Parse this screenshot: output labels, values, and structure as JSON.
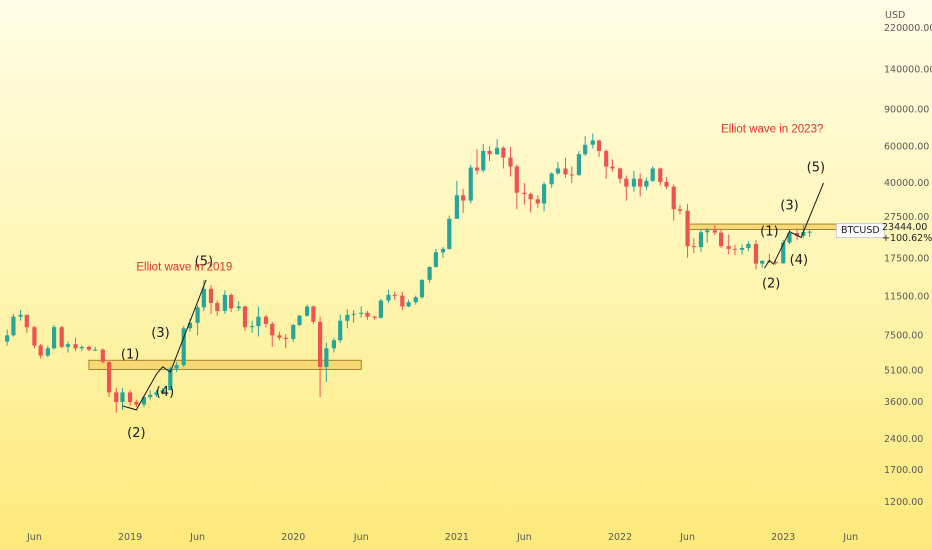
{
  "chart_data": {
    "type": "candlestick",
    "currency_label": "USD",
    "symbol": "BTCUSD",
    "last_price": "23444.00",
    "change_pct": "+100.62%",
    "y_scale": "log",
    "ylim": [
      900,
      300000
    ],
    "y_ticks": [
      "220000.00",
      "140000.00",
      "90000.00",
      "60000.00",
      "40000.00",
      "27500.00",
      "17500.00",
      "11500.00",
      "7500.00",
      "5100.00",
      "3600.00",
      "2400.00",
      "1700.00",
      "1200.00"
    ],
    "x_ticks": [
      "Jun",
      "2019",
      "Jun",
      "2020",
      "Jun",
      "2021",
      "Jun",
      "2022",
      "Jun",
      "2023",
      "Jun"
    ],
    "x_tick_dates": [
      "2018-06-01",
      "2019-01-01",
      "2019-06-01",
      "2020-01-01",
      "2020-06-01",
      "2021-01-01",
      "2021-06-01",
      "2022-01-01",
      "2022-06-01",
      "2023-01-01",
      "2023-06-01"
    ],
    "series": [
      {
        "values": [
          [
            "2018-04-01",
            7000,
            8000,
            6700,
            7500
          ],
          [
            "2018-04-15",
            7500,
            9500,
            7400,
            9200
          ],
          [
            "2018-05-01",
            9200,
            9900,
            8800,
            9400
          ],
          [
            "2018-05-15",
            9400,
            9400,
            7700,
            8200
          ],
          [
            "2018-06-01",
            8200,
            8300,
            6500,
            6700
          ],
          [
            "2018-06-15",
            6700,
            6800,
            5800,
            6000
          ],
          [
            "2018-07-01",
            6000,
            6700,
            5900,
            6500
          ],
          [
            "2018-07-15",
            6500,
            8400,
            6400,
            8200
          ],
          [
            "2018-08-01",
            8200,
            8300,
            6500,
            6600
          ],
          [
            "2018-08-15",
            6600,
            7000,
            6200,
            6800
          ],
          [
            "2018-09-01",
            6800,
            7300,
            6300,
            6500
          ],
          [
            "2018-09-15",
            6500,
            6700,
            6300,
            6600
          ],
          [
            "2018-10-01",
            6600,
            6700,
            6300,
            6400
          ],
          [
            "2018-10-15",
            6400,
            6600,
            6300,
            6400
          ],
          [
            "2018-11-01",
            6400,
            6500,
            5500,
            5600
          ],
          [
            "2018-11-15",
            5600,
            5600,
            3800,
            4000
          ],
          [
            "2018-12-01",
            4000,
            4200,
            3200,
            3600
          ],
          [
            "2018-12-15",
            3600,
            4200,
            3300,
            4000
          ],
          [
            "2019-01-01",
            4000,
            4100,
            3450,
            3600
          ],
          [
            "2019-01-15",
            3600,
            3700,
            3400,
            3500
          ],
          [
            "2019-02-01",
            3500,
            3900,
            3400,
            3800
          ],
          [
            "2019-02-15",
            3800,
            4100,
            3700,
            3900
          ],
          [
            "2019-03-01",
            3900,
            4100,
            3800,
            4000
          ],
          [
            "2019-03-15",
            4000,
            4200,
            3900,
            4100
          ],
          [
            "2019-04-01",
            4100,
            5300,
            4100,
            5200
          ],
          [
            "2019-04-15",
            5200,
            5600,
            5000,
            5400
          ],
          [
            "2019-05-01",
            5400,
            8300,
            5300,
            8100
          ],
          [
            "2019-05-15",
            8100,
            9000,
            7800,
            8600
          ],
          [
            "2019-06-01",
            8600,
            10500,
            7500,
            10200
          ],
          [
            "2019-06-15",
            10200,
            13800,
            9800,
            12500
          ],
          [
            "2019-07-01",
            12500,
            13000,
            9500,
            10700
          ],
          [
            "2019-07-15",
            10700,
            11000,
            9300,
            9800
          ],
          [
            "2019-08-01",
            9800,
            12300,
            9500,
            11700
          ],
          [
            "2019-08-15",
            11700,
            11900,
            9700,
            10100
          ],
          [
            "2019-09-01",
            10100,
            10900,
            9800,
            10300
          ],
          [
            "2019-09-15",
            10300,
            10400,
            7900,
            8200
          ],
          [
            "2019-10-01",
            8200,
            8800,
            7700,
            8300
          ],
          [
            "2019-10-15",
            8300,
            10300,
            7400,
            9200
          ],
          [
            "2019-11-01",
            9200,
            9400,
            8200,
            8500
          ],
          [
            "2019-11-15",
            8500,
            8700,
            6600,
            7500
          ],
          [
            "2019-12-01",
            7500,
            7800,
            7100,
            7300
          ],
          [
            "2019-12-15",
            7300,
            7600,
            6500,
            7200
          ],
          [
            "2020-01-01",
            7200,
            8500,
            7000,
            8400
          ],
          [
            "2020-01-15",
            8400,
            9400,
            8300,
            9300
          ],
          [
            "2020-02-01",
            9300,
            10500,
            9200,
            10300
          ],
          [
            "2020-02-15",
            10300,
            10400,
            8500,
            8700
          ],
          [
            "2020-03-01",
            8700,
            9200,
            3800,
            5300
          ],
          [
            "2020-03-15",
            5300,
            6900,
            4500,
            6500
          ],
          [
            "2020-04-01",
            6500,
            7300,
            6200,
            7100
          ],
          [
            "2020-04-15",
            7100,
            9400,
            6900,
            8800
          ],
          [
            "2020-05-01",
            8800,
            10000,
            8100,
            9400
          ],
          [
            "2020-05-15",
            9400,
            9900,
            8600,
            9500
          ],
          [
            "2020-06-01",
            9500,
            10300,
            9100,
            9600
          ],
          [
            "2020-06-15",
            9600,
            9800,
            8900,
            9200
          ],
          [
            "2020-07-01",
            9200,
            9300,
            8900,
            9100
          ],
          [
            "2020-07-15",
            9100,
            11200,
            9000,
            11000
          ],
          [
            "2020-08-01",
            11000,
            12400,
            10700,
            11700
          ],
          [
            "2020-08-15",
            11700,
            12100,
            11100,
            11600
          ],
          [
            "2020-09-01",
            11600,
            12100,
            9900,
            10300
          ],
          [
            "2020-09-15",
            10300,
            11100,
            10200,
            10800
          ],
          [
            "2020-10-01",
            10800,
            11600,
            10500,
            11400
          ],
          [
            "2020-10-15",
            11400,
            13900,
            11200,
            13800
          ],
          [
            "2020-11-01",
            13800,
            16000,
            13400,
            15900
          ],
          [
            "2020-11-15",
            15900,
            19400,
            15800,
            18700
          ],
          [
            "2020-12-01",
            18700,
            19800,
            17600,
            19400
          ],
          [
            "2020-12-15",
            19400,
            28000,
            19200,
            27000
          ],
          [
            "2021-01-01",
            27000,
            41000,
            27000,
            35000
          ],
          [
            "2021-01-15",
            35000,
            37500,
            28800,
            33000
          ],
          [
            "2021-02-01",
            33000,
            49000,
            32000,
            47500
          ],
          [
            "2021-02-15",
            47500,
            58000,
            44000,
            46000
          ],
          [
            "2021-03-01",
            46000,
            61500,
            45000,
            57000
          ],
          [
            "2021-03-15",
            57000,
            60000,
            51000,
            55000
          ],
          [
            "2021-04-01",
            55000,
            64800,
            54500,
            59000
          ],
          [
            "2021-04-15",
            59000,
            60000,
            47000,
            53000
          ],
          [
            "2021-05-01",
            53000,
            59500,
            43000,
            48000
          ],
          [
            "2021-05-15",
            48000,
            49000,
            30000,
            36000
          ],
          [
            "2021-06-01",
            36000,
            40000,
            31500,
            35500
          ],
          [
            "2021-06-15",
            35500,
            36000,
            29000,
            33500
          ],
          [
            "2021-07-01",
            33500,
            35000,
            30500,
            32000
          ],
          [
            "2021-07-15",
            32000,
            40500,
            29300,
            39500
          ],
          [
            "2021-08-01",
            39500,
            45000,
            38000,
            44500
          ],
          [
            "2021-08-15",
            44500,
            50500,
            44000,
            47000
          ],
          [
            "2021-09-01",
            47000,
            52900,
            42500,
            44000
          ],
          [
            "2021-09-15",
            44000,
            48000,
            40000,
            43800
          ],
          [
            "2021-10-01",
            43800,
            57000,
            43300,
            55000
          ],
          [
            "2021-10-15",
            55000,
            67000,
            54000,
            61000
          ],
          [
            "2021-11-01",
            61000,
            69000,
            58500,
            64000
          ],
          [
            "2021-11-15",
            64000,
            64500,
            53500,
            57000
          ],
          [
            "2021-12-01",
            57000,
            58000,
            42000,
            48000
          ],
          [
            "2021-12-15",
            48000,
            52000,
            45500,
            47000
          ],
          [
            "2022-01-01",
            47000,
            47500,
            40000,
            42000
          ],
          [
            "2022-01-15",
            42000,
            43500,
            33000,
            38500
          ],
          [
            "2022-02-01",
            38500,
            45800,
            36500,
            42000
          ],
          [
            "2022-02-15",
            42000,
            44500,
            34500,
            38500
          ],
          [
            "2022-03-01",
            38500,
            42500,
            37000,
            41000
          ],
          [
            "2022-03-15",
            41000,
            48200,
            40500,
            47000
          ],
          [
            "2022-04-01",
            47000,
            47500,
            39000,
            40500
          ],
          [
            "2022-04-15",
            40500,
            42800,
            37500,
            38500
          ],
          [
            "2022-05-01",
            38500,
            39500,
            26500,
            30000
          ],
          [
            "2022-05-15",
            30000,
            31500,
            28500,
            29500
          ],
          [
            "2022-06-01",
            29500,
            31800,
            17600,
            20000
          ],
          [
            "2022-06-15",
            20000,
            21800,
            18500,
            19800
          ],
          [
            "2022-07-01",
            19800,
            24000,
            18800,
            23300
          ],
          [
            "2022-07-15",
            23300,
            24500,
            20800,
            23800
          ],
          [
            "2022-08-01",
            23800,
            25200,
            22600,
            23200
          ],
          [
            "2022-08-15",
            23200,
            24000,
            19600,
            20000
          ],
          [
            "2022-09-01",
            20000,
            22700,
            18300,
            19400
          ],
          [
            "2022-09-15",
            19400,
            20300,
            18100,
            19200
          ],
          [
            "2022-10-01",
            19200,
            20400,
            18200,
            19600
          ],
          [
            "2022-10-15",
            19600,
            21100,
            18900,
            20500
          ],
          [
            "2022-11-01",
            20500,
            21400,
            15500,
            16500
          ],
          [
            "2022-11-15",
            16500,
            17200,
            15800,
            17000
          ],
          [
            "2022-12-01",
            17000,
            18400,
            16600,
            16800
          ],
          [
            "2022-12-15",
            16800,
            17100,
            16300,
            16550
          ],
          [
            "2023-01-01",
            16550,
            21400,
            16500,
            20800
          ],
          [
            "2023-01-15",
            20800,
            23900,
            20400,
            23100
          ],
          [
            "2023-02-01",
            23100,
            24200,
            21400,
            22400
          ],
          [
            "2023-02-15",
            22400,
            25200,
            21800,
            23400
          ],
          [
            "2023-03-01",
            23400,
            24100,
            22100,
            23444
          ]
        ]
      }
    ],
    "support_zones": [
      {
        "from_date": "2018-10-01",
        "to_date": "2020-06-01",
        "low": 5150,
        "high": 5700
      },
      {
        "from_date": "2022-06-01",
        "to_date": "2023-07-01",
        "low": 24000,
        "high": 25500
      }
    ],
    "wave_paths": [
      {
        "points": [
          [
            "2018-12-15",
            3450
          ],
          [
            "2019-01-15",
            3300
          ],
          [
            "2019-03-01",
            4900
          ],
          [
            "2019-03-15",
            5300
          ],
          [
            "2019-04-01",
            5000
          ],
          [
            "2019-06-20",
            13800
          ]
        ]
      },
      {
        "points": [
          [
            "2022-11-20",
            15700
          ],
          [
            "2022-12-01",
            17100
          ],
          [
            "2022-12-10",
            16400
          ],
          [
            "2023-01-15",
            23500
          ],
          [
            "2023-02-10",
            22000
          ],
          [
            "2023-04-01",
            40000
          ]
        ]
      }
    ],
    "wave_labels": [
      {
        "text": "(1)",
        "date": "2019-01-01",
        "price": 5800
      },
      {
        "text": "(2)",
        "date": "2019-01-15",
        "price": 2450
      },
      {
        "text": "(3)",
        "date": "2019-03-10",
        "price": 7350
      },
      {
        "text": "(4)",
        "date": "2019-03-20",
        "price": 3850
      },
      {
        "text": "(5)",
        "date": "2019-06-15",
        "price": 16200
      },
      {
        "text": "(1)",
        "date": "2022-12-01",
        "price": 22500
      },
      {
        "text": "(2)",
        "date": "2022-12-05",
        "price": 12700
      },
      {
        "text": "(3)",
        "date": "2023-01-15",
        "price": 30000
      },
      {
        "text": "(4)",
        "date": "2023-02-05",
        "price": 16400
      },
      {
        "text": "(5)",
        "date": "2023-03-15",
        "price": 45500
      }
    ],
    "annotations": [
      {
        "text": "Elliot wave in 2019",
        "date": "2019-01-15",
        "price": 15300
      },
      {
        "text": "Elliot wave in 2023?",
        "date": "2022-08-15",
        "price": 70000
      }
    ],
    "colors": {
      "up": "#26a69a",
      "down": "#ef5350",
      "zone_fill": "#f7d36b",
      "zone_stroke": "#8a6d1f",
      "annotation": "#e0342b"
    }
  }
}
